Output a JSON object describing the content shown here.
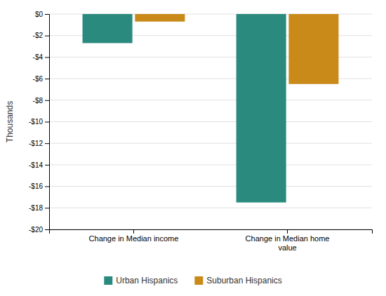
{
  "chart_data": {
    "type": "bar",
    "categories": [
      "Change in Median income",
      "Change in Median home\nvalue"
    ],
    "series": [
      {
        "name": "Urban Hispanics",
        "color": "#2a8a7e",
        "values": [
          -2.7,
          -17.5
        ]
      },
      {
        "name": "Suburban Hispanics",
        "color": "#c98a1a",
        "values": [
          -0.7,
          -6.5
        ]
      }
    ],
    "ylabel": "Thousands",
    "ylim": [
      -20,
      0
    ],
    "yticks": [
      {
        "value": 0,
        "label": "$0"
      },
      {
        "value": -2,
        "label": "-$2"
      },
      {
        "value": -4,
        "label": "-$4"
      },
      {
        "value": -6,
        "label": "-$6"
      },
      {
        "value": -8,
        "label": "-$8"
      },
      {
        "value": -10,
        "label": "-$10"
      },
      {
        "value": -12,
        "label": "-$12"
      },
      {
        "value": -14,
        "label": "-$14"
      },
      {
        "value": -16,
        "label": "-$16"
      },
      {
        "value": -18,
        "label": "-$18"
      },
      {
        "value": -20,
        "label": "-$20"
      }
    ],
    "grid": true,
    "legend": "bottom"
  }
}
